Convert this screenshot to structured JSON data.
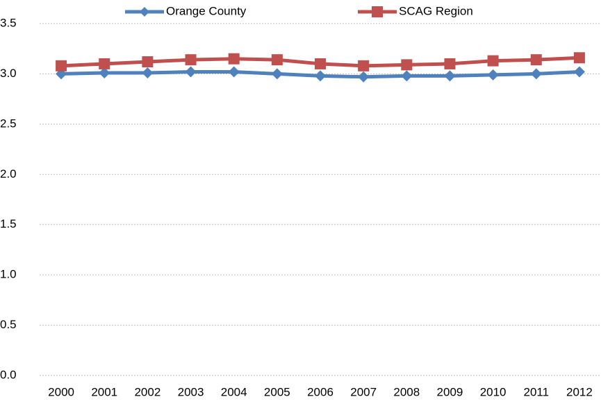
{
  "chart_data": {
    "type": "line",
    "categories": [
      "2000",
      "2001",
      "2002",
      "2003",
      "2004",
      "2005",
      "2006",
      "2007",
      "2008",
      "2009",
      "2010",
      "2011",
      "2012"
    ],
    "series": [
      {
        "name": "Orange County",
        "color": "#4f81bd",
        "marker": "diamond",
        "values": [
          3.0,
          3.01,
          3.01,
          3.02,
          3.02,
          3.0,
          2.98,
          2.97,
          2.98,
          2.98,
          2.99,
          3.0,
          3.02
        ]
      },
      {
        "name": "SCAG Region",
        "color": "#c0504d",
        "marker": "square",
        "values": [
          3.08,
          3.1,
          3.12,
          3.14,
          3.15,
          3.14,
          3.1,
          3.08,
          3.09,
          3.1,
          3.13,
          3.14,
          3.16
        ]
      }
    ],
    "ylim": [
      0,
      3.5
    ],
    "yticks": [
      {
        "value": 0,
        "label": "0.0"
      },
      0.5,
      {
        "value": 1,
        "label": "1.0"
      },
      1.5,
      {
        "value": 2,
        "label": "2.0"
      },
      2.5,
      {
        "value": 3,
        "label": "3.0"
      },
      3.5
    ],
    "grid": true,
    "legend": "top"
  }
}
